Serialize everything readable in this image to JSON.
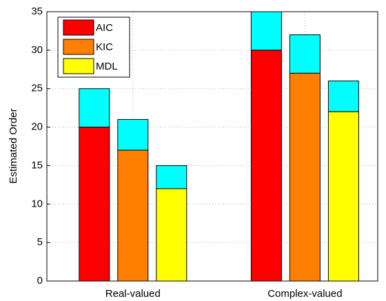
{
  "chart_data": {
    "type": "bar",
    "ylabel": "Estimated Order",
    "categories": [
      "Real-valued",
      "Complex-valued"
    ],
    "series": [
      {
        "name": "AIC",
        "color": "#ff0000",
        "values": [
          20,
          30
        ],
        "upper_values": [
          5,
          5
        ]
      },
      {
        "name": "KIC",
        "color": "#ff8000",
        "values": [
          17,
          27
        ],
        "upper_values": [
          4,
          5
        ]
      },
      {
        "name": "MDL",
        "color": "#ffff00",
        "values": [
          12,
          22
        ],
        "upper_values": [
          3,
          4
        ]
      }
    ],
    "upper_color": "#00ffff",
    "ylim": [
      0,
      35
    ],
    "yticks": [
      0,
      5,
      10,
      15,
      20,
      25,
      30,
      35
    ],
    "grid": true,
    "legend": "upper left"
  }
}
